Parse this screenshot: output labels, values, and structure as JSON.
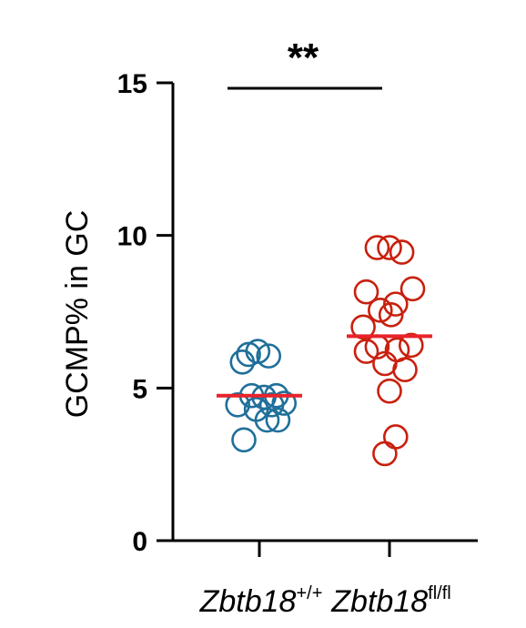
{
  "chart_data": {
    "type": "scatter",
    "ylabel": "GCMP% in GC",
    "ylim": [
      0,
      15
    ],
    "yticks": [
      "0",
      "5",
      "10",
      "15"
    ],
    "grid": false,
    "significance": "**",
    "categories": [
      {
        "name": "Zbtb18",
        "superscript": "+/+"
      },
      {
        "name": "Zbtb18",
        "superscript": "fl/fl"
      }
    ],
    "series": [
      {
        "category_index": 0,
        "color": "#1f6f9a",
        "mean_color": "#e8232a",
        "mean": 4.75,
        "points": [
          {
            "offset": -0.35,
            "y": 6.1
          },
          {
            "offset": -0.05,
            "y": 6.2
          },
          {
            "offset": 0.3,
            "y": 6.05
          },
          {
            "offset": -0.55,
            "y": 5.85
          },
          {
            "offset": -0.25,
            "y": 4.75
          },
          {
            "offset": 0.15,
            "y": 4.7
          },
          {
            "offset": 0.55,
            "y": 4.75
          },
          {
            "offset": -0.7,
            "y": 4.45
          },
          {
            "offset": -0.1,
            "y": 4.3
          },
          {
            "offset": 0.4,
            "y": 4.45
          },
          {
            "offset": 0.8,
            "y": 4.5
          },
          {
            "offset": 0.25,
            "y": 3.95
          },
          {
            "offset": 0.6,
            "y": 3.95
          },
          {
            "offset": -0.5,
            "y": 3.3
          }
        ]
      },
      {
        "category_index": 1,
        "color": "#c8200e",
        "mean_color": "#e8232a",
        "mean": 6.7,
        "points": [
          {
            "offset": -0.4,
            "y": 9.6
          },
          {
            "offset": 0.0,
            "y": 9.6
          },
          {
            "offset": 0.4,
            "y": 9.45
          },
          {
            "offset": -0.75,
            "y": 8.15
          },
          {
            "offset": 0.75,
            "y": 8.25
          },
          {
            "offset": 0.2,
            "y": 7.75
          },
          {
            "offset": -0.3,
            "y": 7.55
          },
          {
            "offset": 0.05,
            "y": 7.4
          },
          {
            "offset": -0.85,
            "y": 7.0
          },
          {
            "offset": -0.75,
            "y": 6.2
          },
          {
            "offset": -0.4,
            "y": 6.35
          },
          {
            "offset": 0.25,
            "y": 6.25
          },
          {
            "offset": 0.7,
            "y": 6.4
          },
          {
            "offset": -0.15,
            "y": 5.8
          },
          {
            "offset": 0.5,
            "y": 5.6
          },
          {
            "offset": 0.0,
            "y": 4.9
          },
          {
            "offset": 0.2,
            "y": 3.4
          },
          {
            "offset": -0.15,
            "y": 2.85
          }
        ]
      }
    ]
  }
}
